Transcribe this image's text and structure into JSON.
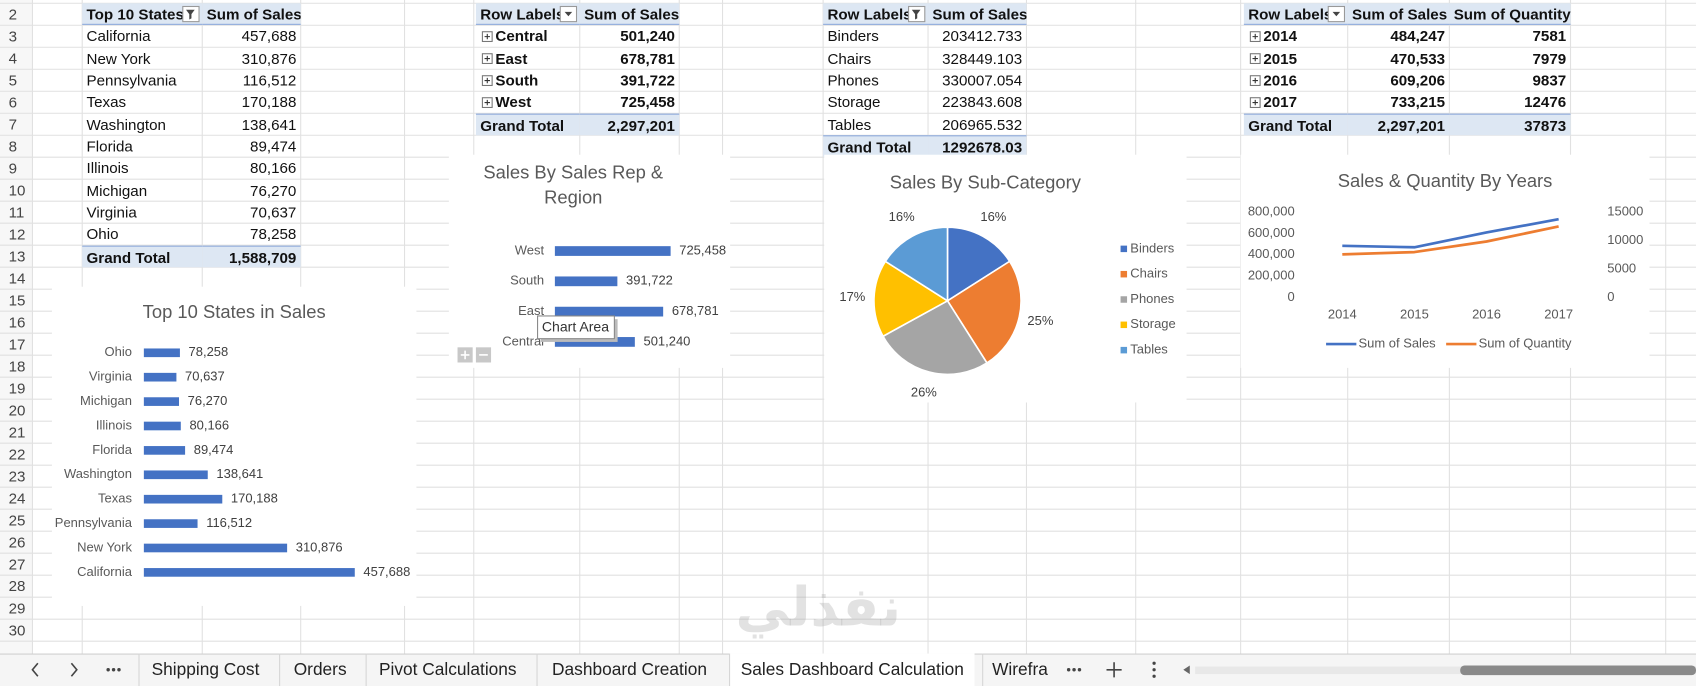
{
  "row_numbers": [
    2,
    3,
    4,
    5,
    6,
    7,
    8,
    9,
    10,
    11,
    12,
    13,
    14,
    15,
    16,
    17,
    18,
    19,
    20,
    21,
    22,
    23,
    24,
    25,
    26,
    27,
    28,
    29,
    30
  ],
  "pivot_tables": [
    {
      "headers": [
        "Top 10 States",
        "Sum of Sales"
      ],
      "rows": [
        [
          "California",
          "457,688"
        ],
        [
          "New York",
          "310,876"
        ],
        [
          "Pennsylvania",
          "116,512"
        ],
        [
          "Texas",
          "170,188"
        ],
        [
          "Washington",
          "138,641"
        ],
        [
          "Florida",
          "89,474"
        ],
        [
          "Illinois",
          "80,166"
        ],
        [
          "Michigan",
          "76,270"
        ],
        [
          "Virginia",
          "70,637"
        ],
        [
          "Ohio",
          "78,258"
        ]
      ],
      "total": [
        "Grand Total",
        "1,588,709"
      ]
    },
    {
      "headers": [
        "Row Labels",
        "Sum of Sales"
      ],
      "rows": [
        [
          "Central",
          "501,240"
        ],
        [
          "East",
          "678,781"
        ],
        [
          "South",
          "391,722"
        ],
        [
          "West",
          "725,458"
        ]
      ],
      "total": [
        "Grand Total",
        "2,297,201"
      ]
    },
    {
      "headers": [
        "Row Labels",
        "Sum of Sales"
      ],
      "rows": [
        [
          "Binders",
          "203412.733"
        ],
        [
          "Chairs",
          "328449.103"
        ],
        [
          "Phones",
          "330007.054"
        ],
        [
          "Storage",
          "223843.608"
        ],
        [
          "Tables",
          "206965.532"
        ]
      ],
      "total": [
        "Grand Total",
        "1292678.03"
      ]
    },
    {
      "headers": [
        "Row Labels",
        "Sum of Sales",
        "Sum of Quantity"
      ],
      "rows": [
        [
          "2014",
          "484,247",
          "7581"
        ],
        [
          "2015",
          "470,533",
          "7979"
        ],
        [
          "2016",
          "609,206",
          "9837"
        ],
        [
          "2017",
          "733,215",
          "12476"
        ]
      ],
      "total": [
        "Grand Total",
        "2,297,201",
        "37873"
      ]
    }
  ],
  "chart_data": [
    {
      "type": "hbar",
      "title": "Top 10 States in Sales",
      "categories": [
        "California",
        "New York",
        "Pennsylvania",
        "Texas",
        "Washington",
        "Florida",
        "Illinois",
        "Michigan",
        "Virginia",
        "Ohio"
      ],
      "values": [
        457688,
        310876,
        116512,
        170188,
        138641,
        89474,
        80166,
        76270,
        70637,
        78258
      ],
      "value_labels": [
        "457,688",
        "310,876",
        "116,512",
        "170,188",
        "138,641",
        "89,474",
        "80,166",
        "76,270",
        "70,637",
        "78,258"
      ],
      "color": "#4472c4"
    },
    {
      "type": "hbar",
      "title": "Sales By Sales Rep & Region",
      "categories": [
        "Central",
        "East",
        "South",
        "West"
      ],
      "values": [
        501240,
        678781,
        391722,
        725458
      ],
      "value_labels": [
        "501,240",
        "678,781",
        "391,722",
        "725,458"
      ],
      "color": "#4472c4"
    },
    {
      "type": "pie",
      "title": "Sales By Sub-Category",
      "categories": [
        "Binders",
        "Chairs",
        "Phones",
        "Storage",
        "Tables"
      ],
      "values": [
        16,
        25,
        26,
        17,
        16
      ],
      "value_labels": [
        "16%",
        "25%",
        "26%",
        "17%",
        "16%"
      ],
      "colors": [
        "#4472c4",
        "#ed7d31",
        "#a5a5a5",
        "#ffc000",
        "#5b9bd5"
      ],
      "legend": "right"
    },
    {
      "type": "line",
      "title": "Sales & Quantity By Years",
      "x": [
        "2014",
        "2015",
        "2016",
        "2017"
      ],
      "series": [
        {
          "name": "Sum of Sales",
          "color": "#4472c4",
          "values": [
            484247,
            470533,
            609206,
            733215
          ]
        },
        {
          "name": "Sum of Quantity",
          "color": "#ed7d31",
          "axis": "y2",
          "values": [
            7581,
            7979,
            9837,
            12476
          ]
        }
      ],
      "ylim": [
        0,
        800000
      ],
      "yticks": [
        0,
        {
          "value": 200000,
          "label": "200,000"
        },
        {
          "value": 400000,
          "label": "400,000"
        },
        {
          "value": 600000,
          "label": "600,000"
        },
        {
          "value": 800000,
          "label": "800,000"
        }
      ],
      "y2lim": [
        0,
        15000
      ],
      "y2ticks": [
        0,
        5000,
        10000,
        15000
      ],
      "legend": "bottom"
    }
  ],
  "tooltip": "Chart Area",
  "watermark": "نفذلي",
  "sheet_tabs": [
    "Shipping Cost",
    "Orders",
    "Pivot Calculations",
    "Dashboard Creation",
    "Sales Dashboard Calculation",
    "Wirefra"
  ],
  "active_tab": 4
}
